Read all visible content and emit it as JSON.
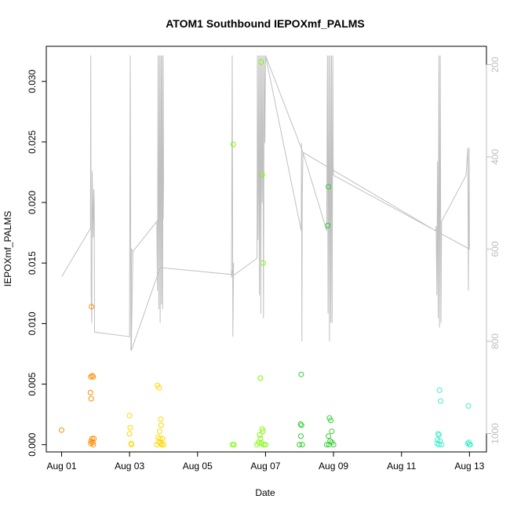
{
  "chart_data": {
    "type": "scatter",
    "title": "ATOM1 Southbound IEPOXmf_PALMS",
    "xlabel": "Date",
    "ylabel": "IEPOXmf_PALMS",
    "x_tick_labels": [
      "Aug 01",
      "Aug 03",
      "Aug 05",
      "Aug 07",
      "Aug 09",
      "Aug 11",
      "Aug 13"
    ],
    "x_ticks": [
      1,
      3,
      5,
      7,
      9,
      11,
      13
    ],
    "xlim": [
      0.55,
      13.5
    ],
    "ylim": [
      -0.0006,
      0.0329
    ],
    "y_ticks": [
      0.0,
      0.005,
      0.01,
      0.015,
      0.02,
      0.025,
      0.03
    ],
    "y_tick_labels": [
      "0.000",
      "0.005",
      "0.010",
      "0.015",
      "0.020",
      "0.025",
      "0.030"
    ],
    "y2_ticks": [
      200,
      400,
      600,
      800,
      1000
    ],
    "y2_tick_labels": [
      "200",
      "400",
      "600",
      "800",
      "1000"
    ],
    "y2lim": [
      1040,
      160
    ],
    "y2_color": "#bebebe",
    "grid": false,
    "series": [
      {
        "color": "#ff8c00",
        "points": [
          [
            1.0,
            0.0012
          ],
          [
            1.88,
            0.0114
          ],
          [
            1.9,
            0.0057
          ],
          [
            1.93,
            0.0056
          ],
          [
            1.86,
            0.0056
          ],
          [
            1.85,
            0.0043
          ],
          [
            1.87,
            0.0038
          ],
          [
            1.9,
            0.0005
          ],
          [
            1.95,
            0.0005
          ],
          [
            1.87,
            0.0003
          ],
          [
            1.92,
            0.0002
          ],
          [
            1.86,
            0.0001
          ],
          [
            1.93,
            0.0
          ]
        ]
      },
      {
        "color": "#ffd700",
        "points": [
          [
            3.0,
            0.0024
          ],
          [
            3.02,
            0.0014
          ],
          [
            3.0,
            0.0009
          ],
          [
            3.05,
            0.0001
          ],
          [
            3.06,
            0.0
          ],
          [
            3.82,
            0.0049
          ],
          [
            3.87,
            0.0047
          ],
          [
            3.92,
            0.0021
          ],
          [
            3.93,
            0.0016
          ],
          [
            3.88,
            0.0011
          ],
          [
            3.84,
            0.0006
          ],
          [
            3.9,
            0.0005
          ],
          [
            3.97,
            0.0005
          ],
          [
            3.86,
            0.0002
          ],
          [
            3.92,
            0.0001
          ],
          [
            3.8,
            0.0
          ],
          [
            3.95,
            0.0
          ],
          [
            4.0,
            0.0
          ]
        ]
      },
      {
        "color": "#7cfc00",
        "points": [
          [
            6.05,
            0.0248
          ],
          [
            6.87,
            0.0316
          ],
          [
            6.9,
            0.0223
          ],
          [
            6.93,
            0.015
          ],
          [
            6.85,
            0.0055
          ],
          [
            6.9,
            0.0013
          ],
          [
            6.92,
            0.0011
          ],
          [
            6.83,
            0.0008
          ],
          [
            6.85,
            0.0005
          ],
          [
            6.8,
            0.0002
          ],
          [
            6.88,
            0.0001
          ],
          [
            6.95,
            0.0
          ],
          [
            6.03,
            0.0
          ],
          [
            6.07,
            0.0
          ],
          [
            6.75,
            0.0
          ],
          [
            7.0,
            0.0
          ]
        ]
      },
      {
        "color": "#32cd32",
        "points": [
          [
            8.05,
            0.0058
          ],
          [
            8.03,
            0.0017
          ],
          [
            8.06,
            0.0016
          ],
          [
            8.04,
            0.0007
          ],
          [
            8.0,
            0.0
          ],
          [
            8.08,
            0.0
          ],
          [
            8.85,
            0.0213
          ],
          [
            8.83,
            0.0181
          ],
          [
            8.88,
            0.0022
          ],
          [
            8.92,
            0.002
          ],
          [
            8.95,
            0.0011
          ],
          [
            8.85,
            0.0007
          ],
          [
            8.9,
            0.0003
          ],
          [
            8.95,
            0.0002
          ],
          [
            8.8,
            0.0
          ],
          [
            8.87,
            0.0
          ],
          [
            9.0,
            0.0
          ]
        ]
      },
      {
        "color": "#3cf0c8",
        "points": [
          [
            12.12,
            0.0045
          ],
          [
            12.15,
            0.0036
          ],
          [
            12.08,
            0.0009
          ],
          [
            12.1,
            0.0008
          ],
          [
            12.06,
            0.0004
          ],
          [
            12.13,
            0.0003
          ],
          [
            12.05,
            0.0001
          ],
          [
            12.1,
            0.0
          ],
          [
            12.18,
            0.0
          ],
          [
            12.97,
            0.0032
          ],
          [
            12.98,
            0.0002
          ],
          [
            12.95,
            0.0001
          ],
          [
            13.0,
            0.0
          ],
          [
            13.02,
            0.0
          ]
        ]
      }
    ],
    "y2_line": {
      "color": "#c0c0c0",
      "points": [
        [
          1.0,
          660
        ],
        [
          1.85,
          555
        ],
        [
          1.86,
          180
        ],
        [
          1.87,
          700
        ],
        [
          1.89,
          760
        ],
        [
          1.9,
          430
        ],
        [
          1.93,
          575
        ],
        [
          1.95,
          470
        ],
        [
          1.96,
          500
        ],
        [
          1.97,
          780
        ],
        [
          3.0,
          790
        ],
        [
          3.02,
          180
        ],
        [
          3.04,
          820
        ],
        [
          3.06,
          600
        ],
        [
          3.1,
          605
        ],
        [
          3.8,
          540
        ],
        [
          3.82,
          690
        ],
        [
          3.84,
          180
        ],
        [
          3.86,
          730
        ],
        [
          3.88,
          180
        ],
        [
          3.9,
          760
        ],
        [
          3.92,
          180
        ],
        [
          3.94,
          720
        ],
        [
          3.95,
          180
        ],
        [
          3.97,
          730
        ],
        [
          3.99,
          180
        ],
        [
          4.0,
          450
        ],
        [
          3.99,
          535
        ],
        [
          3.8,
          540
        ],
        [
          3.1,
          605
        ],
        [
          3.05,
          820
        ],
        [
          3.9,
          640
        ],
        [
          6.0,
          655
        ],
        [
          6.02,
          180
        ],
        [
          6.04,
          790
        ],
        [
          6.06,
          630
        ],
        [
          6.0,
          660
        ],
        [
          6.75,
          620
        ],
        [
          6.76,
          180
        ],
        [
          6.78,
          580
        ],
        [
          6.8,
          180
        ],
        [
          6.82,
          700
        ],
        [
          6.84,
          180
        ],
        [
          6.86,
          740
        ],
        [
          6.88,
          180
        ],
        [
          6.9,
          500
        ],
        [
          6.92,
          180
        ],
        [
          6.94,
          750
        ],
        [
          6.96,
          180
        ],
        [
          6.98,
          370
        ],
        [
          7.0,
          180
        ],
        [
          8.05,
          560
        ],
        [
          8.06,
          370
        ],
        [
          8.07,
          800
        ],
        [
          8.08,
          490
        ],
        [
          8.1,
          390
        ],
        [
          8.8,
          560
        ],
        [
          8.82,
          180
        ],
        [
          8.84,
          740
        ],
        [
          8.86,
          180
        ],
        [
          8.88,
          800
        ],
        [
          8.9,
          180
        ],
        [
          8.92,
          760
        ],
        [
          8.94,
          180
        ],
        [
          8.96,
          760
        ],
        [
          8.98,
          180
        ],
        [
          8.99,
          420
        ],
        [
          9.0,
          440
        ],
        [
          12.0,
          560
        ],
        [
          12.02,
          550
        ],
        [
          12.04,
          700
        ],
        [
          12.06,
          410
        ],
        [
          12.08,
          750
        ],
        [
          12.1,
          180
        ],
        [
          12.12,
          770
        ],
        [
          12.14,
          180
        ],
        [
          12.16,
          760
        ],
        [
          12.18,
          540
        ],
        [
          12.9,
          440
        ],
        [
          12.95,
          380
        ],
        [
          12.97,
          690
        ],
        [
          12.99,
          380
        ],
        [
          13.0,
          600
        ],
        [
          12.0,
          560
        ],
        [
          8.1,
          390
        ],
        [
          7.0,
          180
        ]
      ]
    }
  }
}
